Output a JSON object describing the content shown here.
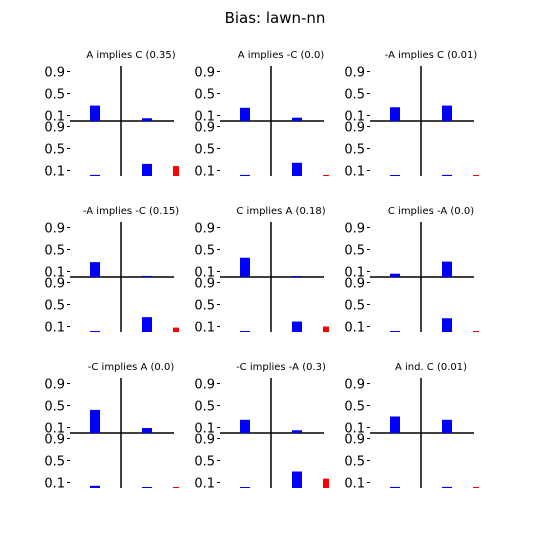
{
  "title": "Bias: lawn-nn",
  "chart_data": {
    "type": "bar",
    "title": "Bias: lawn-nn",
    "ytick_labels": [
      "0.9",
      "0.5",
      "0.1"
    ],
    "ylim": [
      0,
      1
    ],
    "layout": "3x3 grid of panels; each panel = 2x2 quadrant plot with a trailing red bar",
    "colors": {
      "bars": "#0000ff",
      "extra": "#ff0000",
      "axes": "#000000"
    },
    "panels": [
      {
        "title": "A implies C (0.35)",
        "top_left": 0.28,
        "top_right": 0.05,
        "bottom_left": 0.02,
        "bottom_right": 0.22,
        "extra": 0.18
      },
      {
        "title": "A implies -C (0.0)",
        "top_left": 0.24,
        "top_right": 0.06,
        "bottom_left": 0.02,
        "bottom_right": 0.24,
        "extra": 0.0
      },
      {
        "title": "-A implies C (0.01)",
        "top_left": 0.25,
        "top_right": 0.28,
        "bottom_left": 0.01,
        "bottom_right": 0.02,
        "extra": 0.01
      },
      {
        "title": "-A implies -C (0.15)",
        "top_left": 0.27,
        "top_right": 0.02,
        "bottom_left": 0.01,
        "bottom_right": 0.27,
        "extra": 0.08
      },
      {
        "title": "C implies A (0.18)",
        "top_left": 0.35,
        "top_right": 0.01,
        "bottom_left": 0.01,
        "bottom_right": 0.19,
        "extra": 0.1
      },
      {
        "title": "C implies -A (0.0)",
        "top_left": 0.06,
        "top_right": 0.28,
        "bottom_left": 0.0,
        "bottom_right": 0.25,
        "extra": 0.0
      },
      {
        "title": "-C implies A (0.0)",
        "top_left": 0.42,
        "top_right": 0.09,
        "bottom_left": 0.04,
        "bottom_right": 0.01,
        "extra": 0.01
      },
      {
        "title": "-C implies -A (0.3)",
        "top_left": 0.24,
        "top_right": 0.05,
        "bottom_left": 0.01,
        "bottom_right": 0.3,
        "extra": 0.17
      },
      {
        "title": "A ind. C (0.01)",
        "top_left": 0.3,
        "top_right": 0.24,
        "bottom_left": 0.02,
        "bottom_right": 0.02,
        "extra": 0.01
      }
    ]
  }
}
